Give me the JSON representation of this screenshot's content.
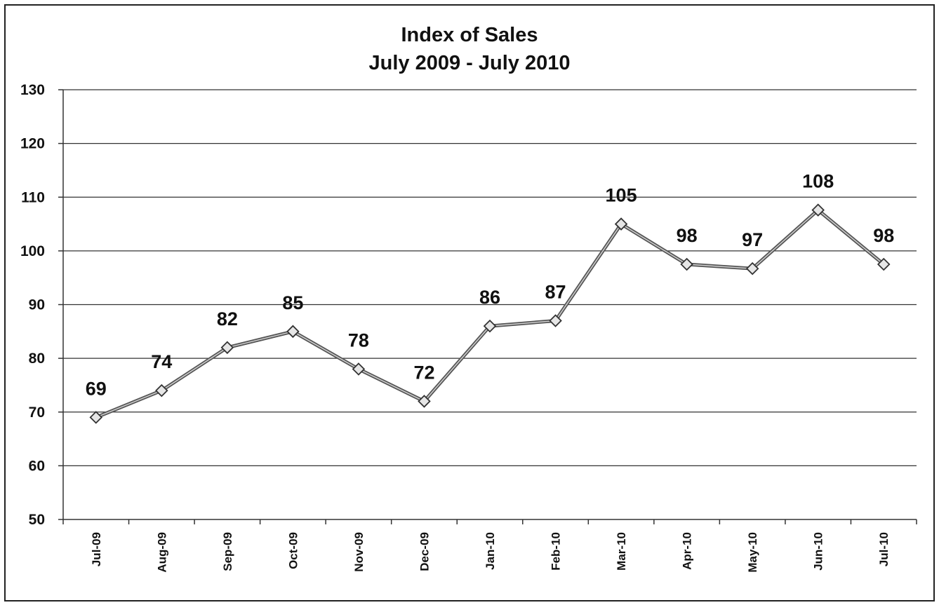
{
  "chart_data": {
    "type": "line",
    "title": "Index of Sales",
    "subtitle": "July 2009 - July 2010",
    "xlabel": "",
    "ylabel": "",
    "categories": [
      "Jul-09",
      "Aug-09",
      "Sep-09",
      "Oct-09",
      "Nov-09",
      "Dec-09",
      "Jan-10",
      "Feb-10",
      "Mar-10",
      "Apr-10",
      "May-10",
      "Jun-10",
      "Jul-10"
    ],
    "series": [
      {
        "values": [
          69,
          74,
          82,
          85,
          78,
          72,
          86,
          87,
          105,
          97.5,
          96.7,
          107.6,
          97.5
        ],
        "labels": [
          "69",
          "74",
          "82",
          "85",
          "78",
          "72",
          "86",
          "87",
          "105",
          "98",
          "97",
          "108",
          "98"
        ]
      }
    ],
    "ylim": [
      50,
      130
    ],
    "yticks": [
      "50",
      "60",
      "70",
      "80",
      "90",
      "100",
      "110",
      "120",
      "130"
    ],
    "grid": true,
    "legend": "none",
    "line_color": "#555555",
    "marker": "diamond"
  }
}
